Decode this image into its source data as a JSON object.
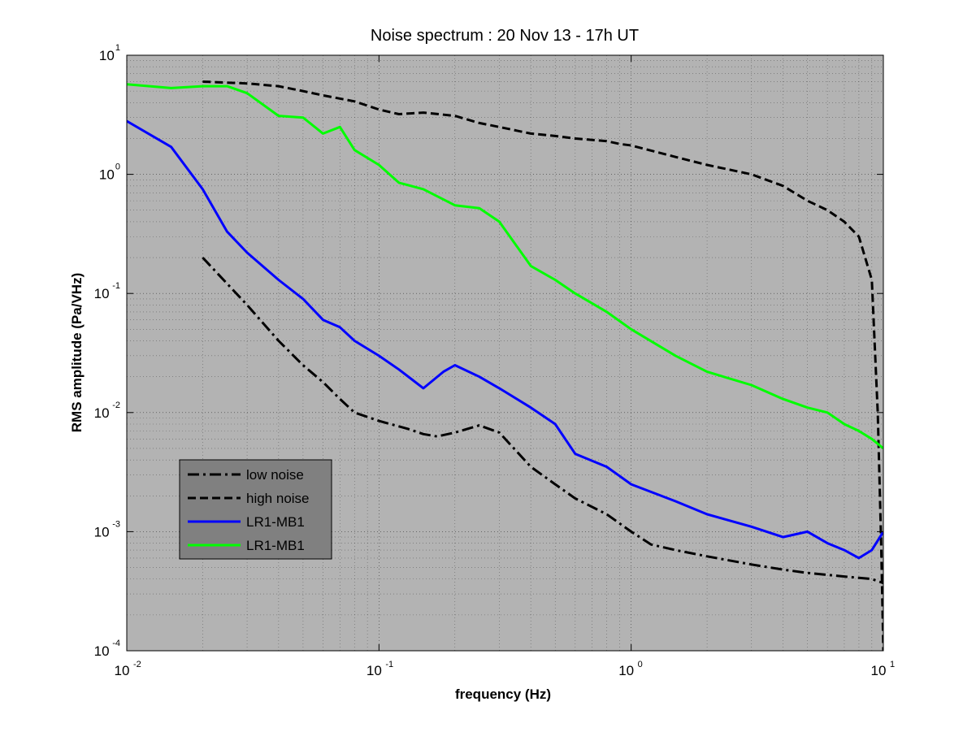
{
  "chart_data": {
    "type": "line",
    "title": "Noise spectrum : 20 Nov 13 - 17h UT",
    "xlabel": "frequency (Hz)",
    "ylabel": "RMS amplitude (Pa/VHz)",
    "x_scale": "log",
    "y_scale": "log",
    "xlim": [
      0.01,
      10
    ],
    "ylim": [
      0.0001,
      10
    ],
    "x_ticks": [
      {
        "base": "10",
        "exp": "-2"
      },
      {
        "base": "10",
        "exp": "-1"
      },
      {
        "base": "10",
        "exp": "0"
      },
      {
        "base": "10",
        "exp": "1"
      }
    ],
    "y_ticks": [
      {
        "base": "10",
        "exp": "-4"
      },
      {
        "base": "10",
        "exp": "-3"
      },
      {
        "base": "10",
        "exp": "-2"
      },
      {
        "base": "10",
        "exp": "-1"
      },
      {
        "base": "10",
        "exp": "0"
      },
      {
        "base": "10",
        "exp": "1"
      }
    ],
    "grid": true,
    "background": "#b3b3b3",
    "legend_position": "lower-left",
    "series": [
      {
        "name": "low noise",
        "color": "#000000",
        "style": "dashdot",
        "x": [
          0.02,
          0.03,
          0.04,
          0.05,
          0.06,
          0.07,
          0.08,
          0.1,
          0.13,
          0.15,
          0.17,
          0.2,
          0.25,
          0.3,
          0.4,
          0.5,
          0.6,
          0.8,
          1,
          1.2,
          1.5,
          2,
          3,
          4,
          5,
          7,
          9,
          10
        ],
        "y": [
          0.2,
          0.08,
          0.04,
          0.025,
          0.018,
          0.013,
          0.01,
          0.0085,
          0.0073,
          0.0066,
          0.0063,
          0.0068,
          0.0078,
          0.0068,
          0.0035,
          0.0025,
          0.0019,
          0.0014,
          0.001,
          0.00078,
          0.0007,
          0.00062,
          0.00053,
          0.00048,
          0.00045,
          0.00042,
          0.0004,
          0.00037
        ]
      },
      {
        "name": "high noise",
        "color": "#000000",
        "style": "dashed",
        "x": [
          0.02,
          0.03,
          0.04,
          0.05,
          0.06,
          0.08,
          0.1,
          0.12,
          0.15,
          0.2,
          0.25,
          0.3,
          0.4,
          0.5,
          0.6,
          0.8,
          0.9,
          1,
          1.5,
          2,
          3,
          4,
          5,
          6,
          7,
          8,
          9,
          9.5,
          9.8,
          10
        ],
        "y": [
          6,
          5.8,
          5.5,
          5,
          4.6,
          4.1,
          3.5,
          3.2,
          3.3,
          3.1,
          2.7,
          2.5,
          2.2,
          2.1,
          2,
          1.9,
          1.8,
          1.75,
          1.4,
          1.2,
          1,
          0.8,
          0.6,
          0.5,
          0.4,
          0.3,
          0.13,
          0.01,
          0.0008,
          0.0001
        ]
      },
      {
        "name": "LR1-MB1",
        "color": "#0000ff",
        "style": "solid",
        "x": [
          0.01,
          0.015,
          0.02,
          0.025,
          0.03,
          0.04,
          0.05,
          0.06,
          0.07,
          0.08,
          0.1,
          0.12,
          0.15,
          0.18,
          0.2,
          0.25,
          0.3,
          0.4,
          0.5,
          0.6,
          0.8,
          1,
          1.5,
          2,
          3,
          4,
          5,
          6,
          7,
          8,
          9,
          10
        ],
        "y": [
          2.8,
          1.7,
          0.75,
          0.33,
          0.22,
          0.13,
          0.09,
          0.06,
          0.052,
          0.04,
          0.03,
          0.023,
          0.016,
          0.022,
          0.025,
          0.02,
          0.016,
          0.011,
          0.008,
          0.0045,
          0.0035,
          0.0025,
          0.0018,
          0.0014,
          0.0011,
          0.0009,
          0.001,
          0.0008,
          0.0007,
          0.0006,
          0.0007,
          0.001
        ]
      },
      {
        "name": "LR1-MB1",
        "color": "#00ff00",
        "style": "solid",
        "x": [
          0.01,
          0.015,
          0.02,
          0.025,
          0.03,
          0.04,
          0.05,
          0.06,
          0.07,
          0.08,
          0.1,
          0.12,
          0.15,
          0.2,
          0.25,
          0.3,
          0.4,
          0.5,
          0.6,
          0.8,
          1,
          1.5,
          2,
          3,
          4,
          5,
          6,
          7,
          8,
          9,
          10
        ],
        "y": [
          5.7,
          5.3,
          5.5,
          5.5,
          4.8,
          3.1,
          3,
          2.2,
          2.5,
          1.6,
          1.2,
          0.85,
          0.75,
          0.55,
          0.52,
          0.4,
          0.17,
          0.13,
          0.1,
          0.07,
          0.05,
          0.03,
          0.022,
          0.017,
          0.013,
          0.011,
          0.01,
          0.008,
          0.007,
          0.006,
          0.005
        ]
      }
    ]
  }
}
